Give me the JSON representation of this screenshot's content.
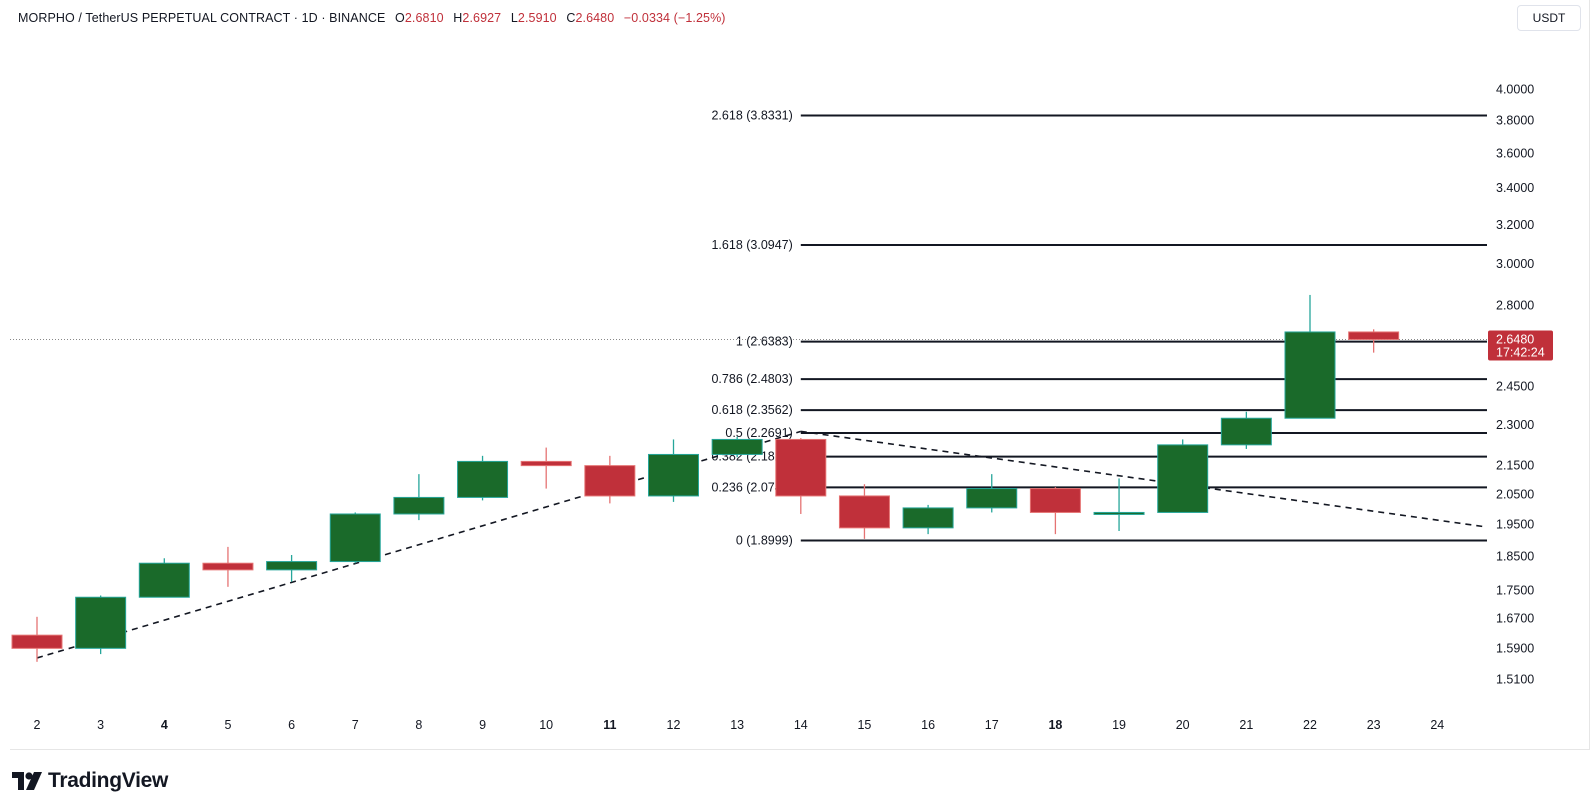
{
  "legend": {
    "symbol": "MORPHO / TetherUS PERPETUAL CONTRACT · 1D · BINANCE",
    "open_label": "O",
    "open": "2.6810",
    "high_label": "H",
    "high": "2.6927",
    "low_label": "L",
    "low": "2.5910",
    "close_label": "C",
    "close": "2.6480",
    "change": "−0.0334 (−1.25%)"
  },
  "currency": "USDT",
  "price_tag": {
    "price": "2.6480",
    "countdown": "17:42:24"
  },
  "brand": "TradingView",
  "colors": {
    "up": "#1a6a2a",
    "down": "#c0303a",
    "up_wick": "#26a69a",
    "down_wick": "#e57373",
    "tag": "#c0303a"
  },
  "chart_data": {
    "type": "candlestick",
    "y_axis": {
      "scale": "log",
      "range": [
        1.46,
        4.18
      ],
      "ticks": [
        "4.0000",
        "3.8000",
        "3.6000",
        "3.4000",
        "3.2000",
        "3.0000",
        "2.8000",
        "2.4500",
        "2.3000",
        "2.1500",
        "2.0500",
        "1.9500",
        "1.8500",
        "1.7500",
        "1.6700",
        "1.5900",
        "1.5100"
      ]
    },
    "x_axis": {
      "ticks": [
        "2",
        "3",
        "4",
        "5",
        "6",
        "7",
        "8",
        "9",
        "10",
        "11",
        "12",
        "13",
        "14",
        "15",
        "16",
        "17",
        "18",
        "19",
        "20",
        "21",
        "22",
        "23",
        "24"
      ],
      "bold_ticks": [
        "4",
        "11",
        "18"
      ]
    },
    "candles": [
      {
        "x": "2",
        "open": 1.625,
        "high": 1.675,
        "low": 1.555,
        "close": 1.59
      },
      {
        "x": "3",
        "open": 1.59,
        "high": 1.735,
        "low": 1.575,
        "close": 1.73
      },
      {
        "x": "4",
        "open": 1.73,
        "high": 1.845,
        "low": 1.73,
        "close": 1.83
      },
      {
        "x": "5",
        "open": 1.83,
        "high": 1.88,
        "low": 1.76,
        "close": 1.81
      },
      {
        "x": "6",
        "open": 1.81,
        "high": 1.855,
        "low": 1.775,
        "close": 1.835
      },
      {
        "x": "7",
        "open": 1.835,
        "high": 1.99,
        "low": 1.83,
        "close": 1.985
      },
      {
        "x": "8",
        "open": 1.985,
        "high": 2.12,
        "low": 1.965,
        "close": 2.04
      },
      {
        "x": "9",
        "open": 2.04,
        "high": 2.185,
        "low": 2.03,
        "close": 2.165
      },
      {
        "x": "10",
        "open": 2.165,
        "high": 2.215,
        "low": 2.07,
        "close": 2.15
      },
      {
        "x": "11",
        "open": 2.15,
        "high": 2.185,
        "low": 2.02,
        "close": 2.045
      },
      {
        "x": "12",
        "open": 2.045,
        "high": 2.245,
        "low": 2.025,
        "close": 2.19
      },
      {
        "x": "13",
        "open": 2.19,
        "high": 2.255,
        "low": 2.18,
        "close": 2.245
      },
      {
        "x": "14",
        "open": 2.245,
        "high": 2.25,
        "low": 1.985,
        "close": 2.045
      },
      {
        "x": "15",
        "open": 2.045,
        "high": 2.085,
        "low": 1.905,
        "close": 1.94
      },
      {
        "x": "16",
        "open": 1.94,
        "high": 2.015,
        "low": 1.92,
        "close": 2.005
      },
      {
        "x": "17",
        "open": 2.005,
        "high": 2.12,
        "low": 1.99,
        "close": 2.07
      },
      {
        "x": "18",
        "open": 2.07,
        "high": 2.075,
        "low": 1.92,
        "close": 1.99
      },
      {
        "x": "19",
        "open": 1.99,
        "high": 2.105,
        "low": 1.93,
        "close": 1.99
      },
      {
        "x": "20",
        "open": 1.99,
        "high": 2.245,
        "low": 1.99,
        "close": 2.225
      },
      {
        "x": "21",
        "open": 2.225,
        "high": 2.35,
        "low": 2.21,
        "close": 2.325
      },
      {
        "x": "22",
        "open": 2.325,
        "high": 2.85,
        "low": 2.325,
        "close": 2.681
      },
      {
        "x": "23",
        "open": 2.681,
        "high": 2.6927,
        "low": 2.591,
        "close": 2.648
      }
    ],
    "fib_levels": [
      {
        "label": "0 (1.8999)",
        "value": 1.8999
      },
      {
        "label": "0.236 (2.0742)",
        "value": 2.0742
      },
      {
        "label": "0.382 (2.1820)",
        "value": 2.182
      },
      {
        "label": "0.5 (2.2691)",
        "value": 2.2691
      },
      {
        "label": "0.618 (2.3562)",
        "value": 2.3562
      },
      {
        "label": "0.786 (2.4803)",
        "value": 2.4803
      },
      {
        "label": "1 (2.6383)",
        "value": 2.6383
      },
      {
        "label": "1.618 (3.0947)",
        "value": 3.0947
      },
      {
        "label": "2.618 (3.8331)",
        "value": 3.8331
      }
    ],
    "trendlines": [
      {
        "style": "dashed",
        "from": {
          "x": "2",
          "y": 1.565
        },
        "to": {
          "x": "14",
          "y": 2.275
        }
      },
      {
        "style": "dashed",
        "from": {
          "x": "14",
          "y": 2.275
        },
        "to": {
          "x": "24",
          "y": 1.965
        },
        "extends_right": true
      }
    ],
    "last_price": 2.648
  }
}
